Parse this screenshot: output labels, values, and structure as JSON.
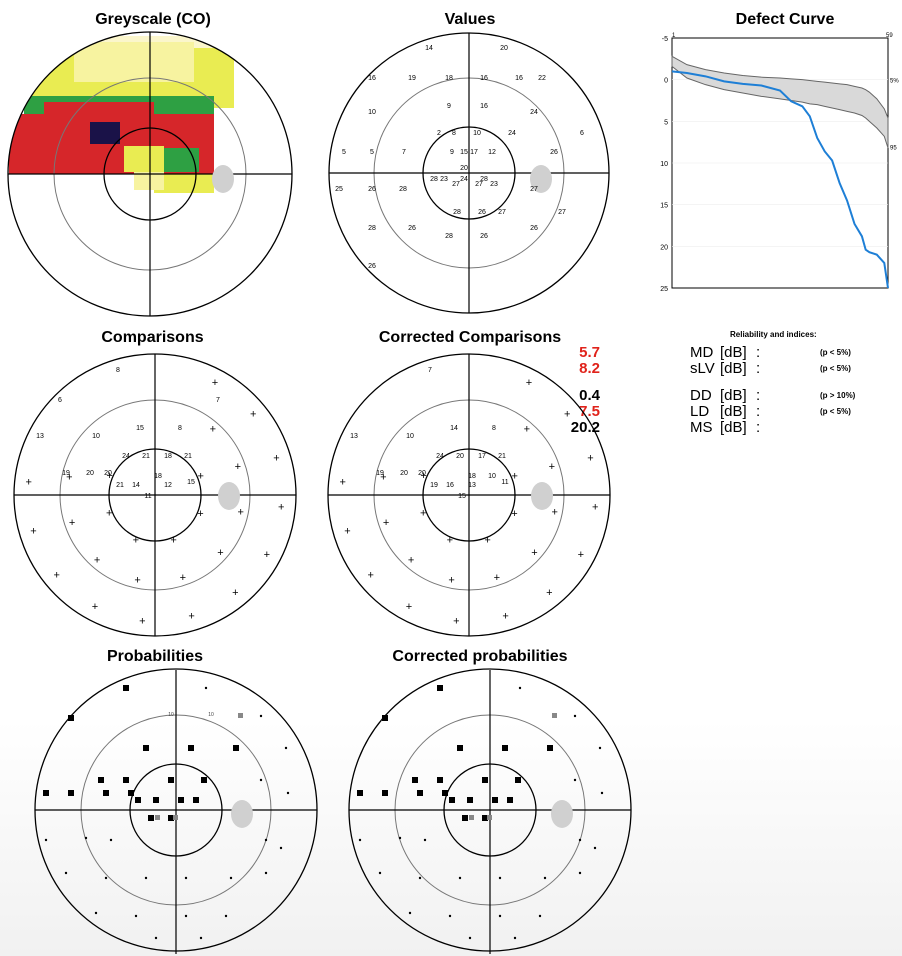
{
  "titles": {
    "greyscale": "Greyscale (CO)",
    "values": "Values",
    "defect_curve": "Defect Curve",
    "comparisons": "Comparisons",
    "corrected_comparisons": "Corrected Comparisons",
    "probabilities": "Probabilities",
    "corrected_probabilities": "Corrected probabilities"
  },
  "values_field": {
    "labels": [
      "14",
      "20",
      "16",
      "19",
      "18",
      "16",
      "16",
      "22",
      "10",
      "9",
      "16",
      "24",
      "2",
      "8",
      "10",
      "24",
      "6",
      "5",
      "5",
      "7",
      "9",
      "15",
      "17",
      "12",
      "26",
      "20",
      "28",
      "23",
      "24",
      "28",
      "25",
      "26",
      "28",
      "27",
      "27",
      "23",
      "27",
      "28",
      "26",
      "27",
      "27",
      "28",
      "26",
      "28",
      "26",
      "26",
      "26"
    ]
  },
  "comparisons_field": {
    "labels": [
      "8",
      "6",
      "7",
      "15",
      "8",
      "13",
      "10",
      "24",
      "21",
      "18",
      "21",
      "18",
      "19",
      "20",
      "20",
      "21",
      "14",
      "12",
      "15",
      "11"
    ]
  },
  "corrected_comparisons_field": {
    "labels": [
      "7",
      "14",
      "8",
      "13",
      "10",
      "24",
      "20",
      "17",
      "21",
      "18",
      "19",
      "20",
      "20",
      "19",
      "16",
      "13",
      "11",
      "15",
      "10"
    ]
  },
  "probabilities_field": {
    "labels": [
      "10",
      "10"
    ]
  },
  "corrected_probabilities_field": {
    "labels": []
  },
  "defect_curve": {
    "x_tick_start": "1",
    "x_tick_end": "59",
    "y_ticks": [
      "-5",
      "0",
      "5",
      "10",
      "15",
      "20",
      "25"
    ],
    "percentile_labels": [
      "5%",
      "95"
    ]
  },
  "chart_data": {
    "type": "line",
    "title": "Defect Curve",
    "xlabel": "",
    "ylabel": "",
    "xlim": [
      1,
      59
    ],
    "ylim": [
      -5,
      25
    ],
    "y_inverted": true,
    "x": [
      1,
      5,
      10,
      15,
      20,
      25,
      30,
      33,
      36,
      38,
      40,
      42,
      44,
      46,
      48,
      50,
      52,
      53,
      54,
      56,
      58,
      59
    ],
    "series": [
      {
        "values": [
          -1,
          -0.8,
          -0.4,
          0.2,
          0.5,
          0.7,
          1.3,
          2.6,
          3.2,
          4.4,
          7.0,
          8.6,
          9.7,
          12.4,
          14.5,
          17.3,
          18.8,
          20.4,
          20.7,
          21.0,
          22.0,
          25.0
        ]
      },
      {
        "values": [
          -2.8,
          -1.8,
          -1.2,
          -0.8,
          -0.5,
          -0.3,
          -0.2,
          -0.1,
          0.0,
          0.1,
          0.2,
          0.3,
          0.4,
          0.5,
          0.6,
          0.8,
          1.0,
          1.2,
          1.5,
          2.3,
          3.5,
          4.6
        ]
      },
      {
        "values": [
          -1.6,
          -0.2,
          0.6,
          1.2,
          1.6,
          2.0,
          2.3,
          2.5,
          2.7,
          2.9,
          3.0,
          3.2,
          3.4,
          3.6,
          3.8,
          4.0,
          4.3,
          4.6,
          5.0,
          5.8,
          6.8,
          8.2
        ]
      }
    ]
  },
  "indices": {
    "heading": "Reliability and indices:",
    "rows": [
      {
        "name": "MD",
        "unit": "[dB]",
        "value": "5.7",
        "p": "(p <  5%)",
        "color": "#e0231b"
      },
      {
        "name": "sLV",
        "unit": "[dB]",
        "value": "8.2",
        "p": "(p <  5%)",
        "color": "#e0231b"
      },
      {
        "name": "DD",
        "unit": "[dB]",
        "value": "0.4",
        "p": "(p > 10%)",
        "color": "#000000"
      },
      {
        "name": "LD",
        "unit": "[dB]",
        "value": "7.5",
        "p": "(p <  5%)",
        "color": "#e0231b"
      },
      {
        "name": "MS",
        "unit": "[dB]",
        "value": "20.2",
        "p": "",
        "color": "#000000"
      }
    ]
  },
  "colors": {
    "series_blue": "#1e7fd6",
    "band_fill": "#d9d9d9",
    "significant_red": "#e0231b",
    "heat_red": "#d6262a",
    "heat_green": "#2ea043",
    "heat_yellow": "#e9ec52",
    "heat_lightyellow": "#f7f3a0",
    "heat_cream": "#fbf6cc",
    "heat_navy": "#1a1248",
    "blind_spot": "#d0d0d0"
  }
}
